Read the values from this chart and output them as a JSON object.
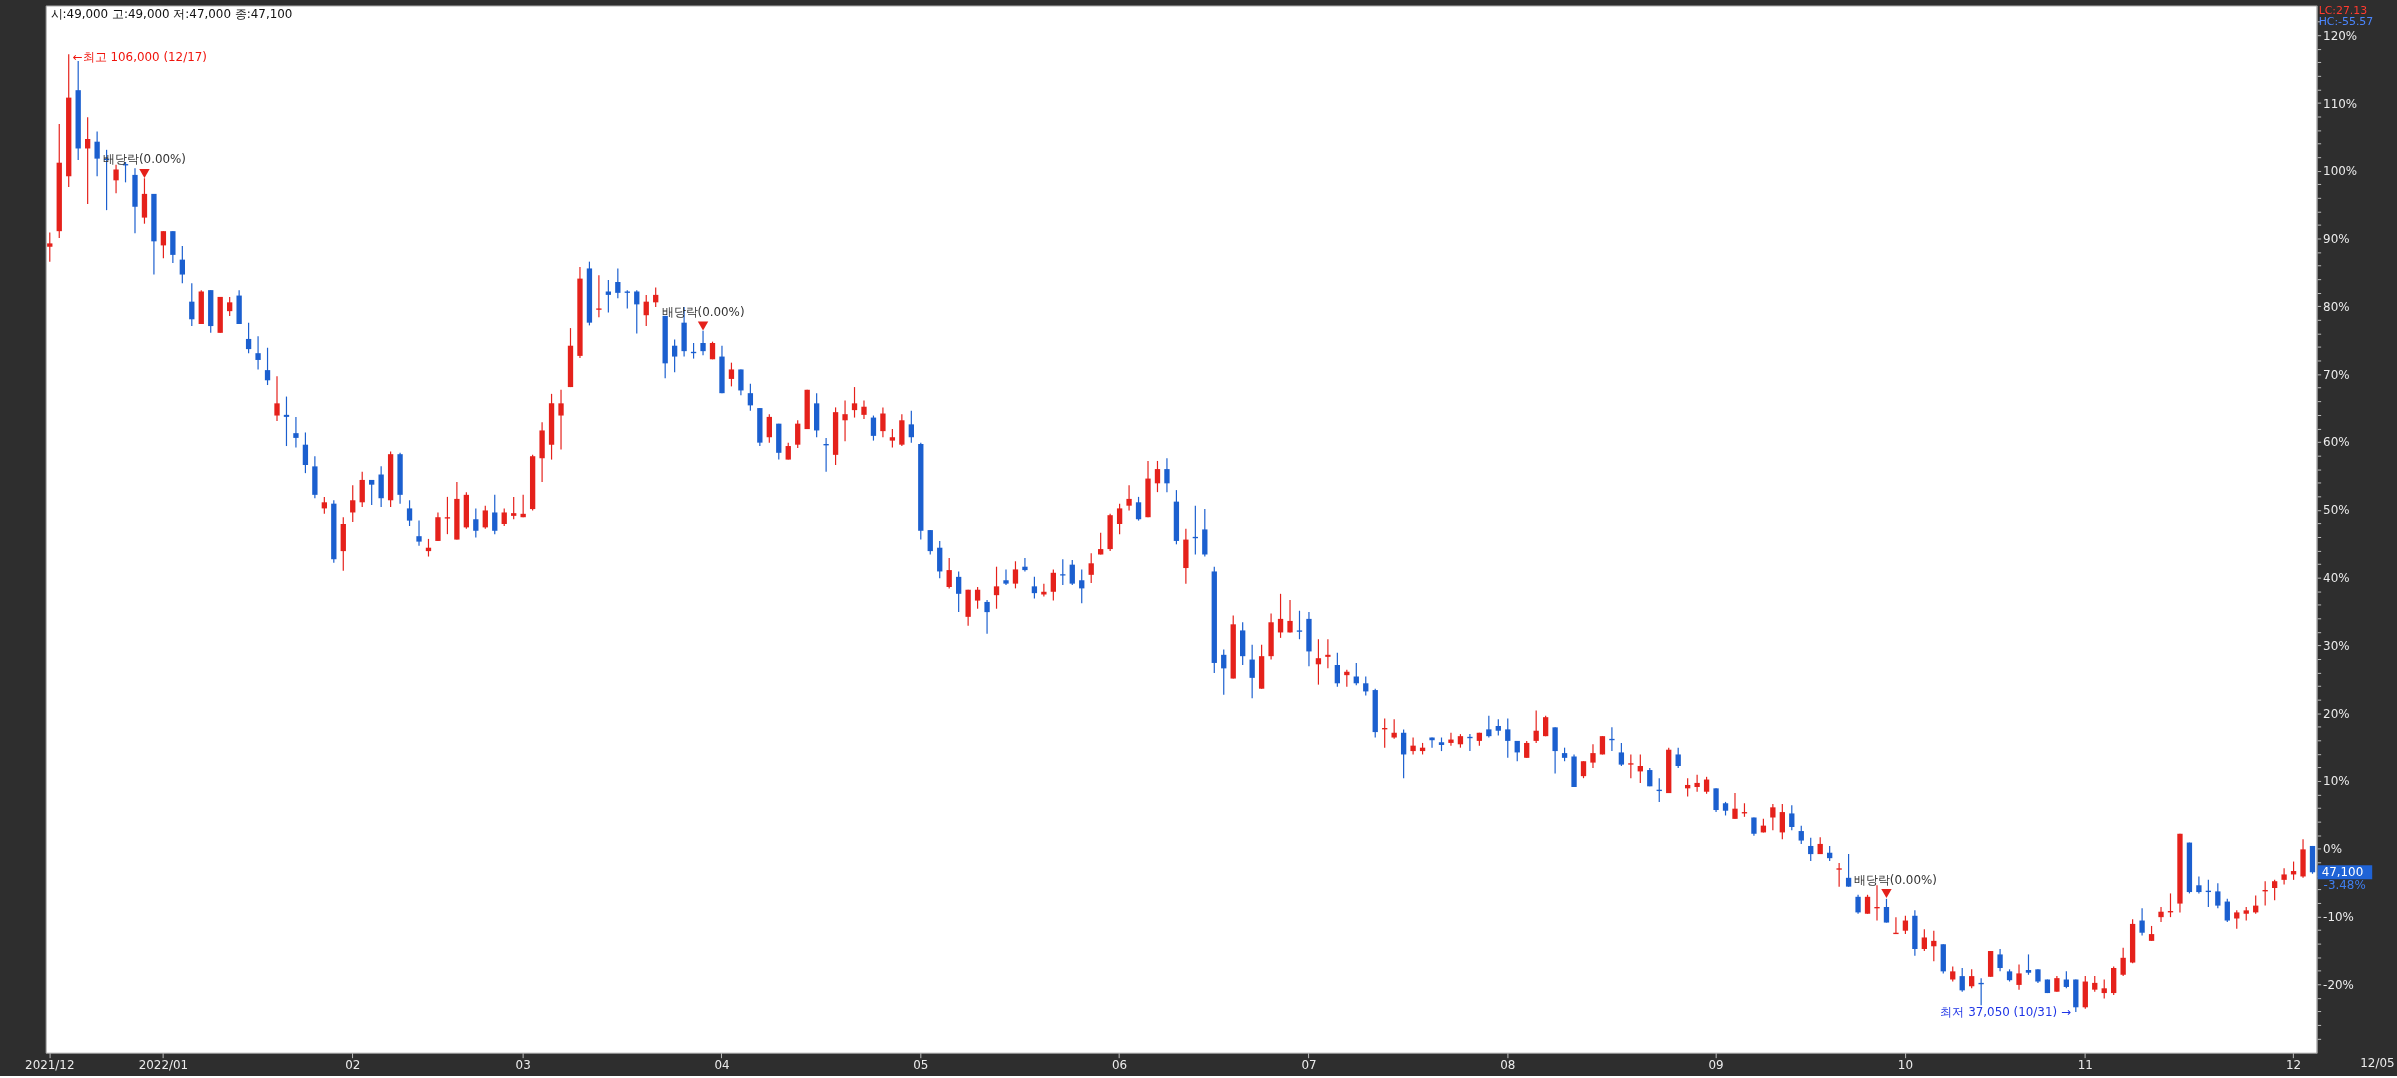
{
  "chart_data": {
    "type": "candlestick",
    "title": "시:49,000 고:49,000 저:47,000 종:47,100",
    "categories": [
      "2021/12",
      null,
      null,
      null,
      null,
      null,
      null,
      null,
      null,
      null,
      null,
      null,
      "2022/01",
      null,
      null,
      null,
      null,
      null,
      null,
      null,
      null,
      null,
      null,
      null,
      null,
      null,
      null,
      null,
      null,
      null,
      null,
      null,
      "02",
      null,
      null,
      null,
      null,
      null,
      null,
      null,
      null,
      null,
      null,
      null,
      null,
      null,
      null,
      null,
      null,
      null,
      "03",
      null,
      null,
      null,
      null,
      null,
      null,
      null,
      null,
      null,
      null,
      null,
      null,
      null,
      null,
      null,
      null,
      null,
      null,
      null,
      null,
      "04",
      null,
      null,
      null,
      null,
      null,
      null,
      null,
      null,
      null,
      null,
      null,
      null,
      null,
      null,
      null,
      null,
      null,
      null,
      null,
      null,
      "05",
      null,
      null,
      null,
      null,
      null,
      null,
      null,
      null,
      null,
      null,
      null,
      null,
      null,
      null,
      null,
      null,
      null,
      null,
      null,
      null,
      "06",
      null,
      null,
      null,
      null,
      null,
      null,
      null,
      null,
      null,
      null,
      null,
      null,
      null,
      null,
      null,
      null,
      null,
      null,
      null,
      "07",
      null,
      null,
      null,
      null,
      null,
      null,
      null,
      null,
      null,
      null,
      null,
      null,
      null,
      null,
      null,
      null,
      null,
      null,
      null,
      null,
      "08",
      null,
      null,
      null,
      null,
      null,
      null,
      null,
      null,
      null,
      null,
      null,
      null,
      null,
      null,
      null,
      null,
      null,
      null,
      null,
      null,
      null,
      "09",
      null,
      null,
      null,
      null,
      null,
      null,
      null,
      null,
      null,
      null,
      null,
      null,
      null,
      null,
      null,
      null,
      null,
      null,
      null,
      "10",
      null,
      null,
      null,
      null,
      null,
      null,
      null,
      null,
      null,
      null,
      null,
      null,
      null,
      null,
      null,
      null,
      null,
      null,
      "11",
      null,
      null,
      null,
      null,
      null,
      null,
      null,
      null,
      null,
      null,
      null,
      null,
      null,
      null,
      null,
      null,
      null,
      null,
      null,
      null,
      null,
      "12",
      null,
      null
    ],
    "ohlc": [
      [
        88.8,
        90.9,
        86.6,
        89.3
      ],
      [
        91.1,
        106.9,
        90.1,
        101.2
      ],
      [
        99.2,
        117.2,
        97.6,
        110.8
      ],
      [
        111.9,
        116.2,
        101.6,
        103.3
      ],
      [
        103.3,
        107.9,
        95.1,
        104.7
      ],
      [
        104.3,
        105.8,
        99.2,
        101.8
      ],
      [
        101.8,
        103.1,
        94.2,
        101.6
      ],
      [
        98.6,
        100.9,
        96.7,
        100.2
      ],
      [
        101.0,
        101.3,
        98.3,
        100.8
      ],
      [
        99.4,
        100.4,
        90.8,
        94.7
      ],
      [
        93.1,
        98.9,
        92.2,
        96.6
      ],
      [
        96.6,
        96.6,
        84.7,
        89.6
      ],
      [
        89.0,
        91.1,
        87.1,
        91.1
      ],
      [
        91.1,
        91.1,
        86.4,
        87.6
      ],
      [
        86.9,
        88.9,
        83.4,
        84.7
      ],
      [
        80.7,
        83.4,
        77.1,
        78.1
      ],
      [
        77.4,
        82.4,
        77.4,
        82.2
      ],
      [
        82.4,
        82.4,
        76.1,
        77.1
      ],
      [
        76.1,
        81.4,
        76.1,
        81.4
      ],
      [
        79.3,
        81.4,
        78.6,
        80.6
      ],
      [
        81.6,
        82.4,
        77.4,
        77.4
      ],
      [
        75.2,
        77.6,
        73.1,
        73.7
      ],
      [
        73.1,
        75.6,
        70.7,
        72.1
      ],
      [
        70.6,
        73.9,
        68.4,
        69.1
      ],
      [
        63.9,
        69.7,
        63.1,
        65.7
      ],
      [
        64.0,
        66.7,
        59.4,
        63.7
      ],
      [
        61.3,
        63.7,
        59.2,
        60.6
      ],
      [
        59.6,
        61.4,
        55.4,
        56.6
      ],
      [
        56.4,
        57.9,
        51.7,
        52.2
      ],
      [
        50.2,
        51.9,
        49.4,
        51.1
      ],
      [
        50.9,
        51.4,
        42.2,
        42.7
      ],
      [
        43.9,
        48.9,
        41.0,
        47.9
      ],
      [
        49.6,
        53.6,
        48.2,
        51.4
      ],
      [
        51.1,
        55.6,
        50.4,
        54.4
      ],
      [
        54.4,
        54.4,
        50.7,
        53.7
      ],
      [
        55.2,
        56.4,
        50.4,
        51.7
      ],
      [
        51.4,
        58.6,
        50.4,
        58.2
      ],
      [
        58.2,
        58.4,
        50.9,
        52.2
      ],
      [
        50.2,
        51.4,
        47.6,
        48.4
      ],
      [
        46.1,
        48.4,
        44.7,
        45.3
      ],
      [
        43.9,
        45.7,
        43.1,
        44.4
      ],
      [
        45.4,
        49.6,
        45.4,
        48.9
      ],
      [
        48.7,
        51.9,
        46.4,
        48.9
      ],
      [
        45.6,
        54.1,
        45.6,
        51.6
      ],
      [
        47.4,
        52.6,
        47.2,
        52.2
      ],
      [
        48.6,
        50.2,
        45.9,
        46.9
      ],
      [
        47.4,
        50.6,
        47.2,
        49.9
      ],
      [
        49.6,
        52.2,
        46.4,
        46.9
      ],
      [
        47.9,
        50.2,
        47.6,
        49.6
      ],
      [
        49.1,
        51.9,
        48.6,
        49.5
      ],
      [
        48.9,
        52.2,
        48.9,
        49.4
      ],
      [
        50.1,
        58.1,
        49.9,
        57.9
      ],
      [
        57.6,
        62.9,
        54.1,
        61.7
      ],
      [
        59.6,
        67.1,
        57.4,
        65.7
      ],
      [
        63.9,
        67.7,
        58.9,
        65.7
      ],
      [
        68.1,
        76.8,
        68.1,
        74.2
      ],
      [
        72.7,
        85.8,
        72.4,
        84.1
      ],
      [
        85.6,
        86.6,
        77.2,
        77.6
      ],
      [
        79.5,
        84.6,
        78.4,
        79.7
      ],
      [
        82.2,
        83.9,
        79.1,
        81.7
      ],
      [
        83.6,
        85.6,
        81.2,
        82.0
      ],
      [
        82.2,
        82.4,
        79.7,
        82.0
      ],
      [
        82.2,
        82.4,
        76.0,
        80.3
      ],
      [
        78.7,
        81.7,
        77.1,
        80.7
      ],
      [
        80.6,
        82.8,
        79.9,
        81.7
      ],
      [
        78.6,
        78.6,
        69.4,
        71.6
      ],
      [
        74.2,
        75.1,
        70.3,
        72.6
      ],
      [
        77.6,
        79.9,
        72.6,
        73.4
      ],
      [
        73.3,
        74.6,
        72.3,
        73.1
      ],
      [
        74.6,
        76.4,
        72.8,
        73.4
      ],
      [
        72.2,
        74.8,
        72.2,
        74.6
      ],
      [
        72.6,
        74.2,
        67.2,
        67.2
      ],
      [
        69.3,
        71.7,
        68.2,
        70.7
      ],
      [
        70.7,
        70.7,
        66.9,
        67.6
      ],
      [
        67.2,
        68.6,
        64.6,
        65.4
      ],
      [
        65.0,
        65.0,
        59.4,
        59.9
      ],
      [
        60.7,
        64.1,
        59.9,
        63.7
      ],
      [
        62.7,
        62.7,
        57.4,
        58.4
      ],
      [
        57.4,
        59.9,
        57.4,
        59.4
      ],
      [
        59.6,
        63.2,
        59.1,
        62.7
      ],
      [
        61.9,
        67.7,
        61.9,
        67.7
      ],
      [
        65.7,
        67.2,
        60.7,
        61.7
      ],
      [
        59.7,
        60.6,
        55.6,
        59.5
      ],
      [
        58.1,
        65.1,
        56.6,
        64.4
      ],
      [
        63.2,
        66.1,
        60.1,
        64.1
      ],
      [
        64.7,
        68.1,
        63.6,
        65.7
      ],
      [
        64.0,
        66.1,
        63.4,
        65.2
      ],
      [
        63.6,
        63.9,
        60.2,
        60.9
      ],
      [
        61.6,
        65.1,
        60.7,
        64.2
      ],
      [
        60.2,
        61.9,
        59.2,
        60.7
      ],
      [
        59.6,
        64.1,
        59.4,
        63.2
      ],
      [
        62.6,
        64.6,
        59.9,
        60.7
      ],
      [
        59.7,
        59.9,
        45.6,
        46.9
      ],
      [
        47.0,
        47.0,
        43.4,
        43.9
      ],
      [
        44.4,
        45.4,
        39.9,
        40.9
      ],
      [
        38.6,
        42.9,
        38.4,
        41.1
      ],
      [
        40.1,
        40.9,
        34.9,
        37.6
      ],
      [
        34.2,
        38.2,
        32.9,
        38.2
      ],
      [
        36.6,
        38.6,
        35.4,
        38.2
      ],
      [
        36.4,
        36.7,
        31.7,
        34.9
      ],
      [
        37.4,
        41.6,
        35.4,
        38.7
      ],
      [
        39.6,
        41.2,
        38.9,
        39.1
      ],
      [
        39.1,
        42.4,
        38.4,
        41.2
      ],
      [
        41.6,
        42.9,
        40.9,
        41.1
      ],
      [
        38.7,
        40.1,
        36.9,
        37.7
      ],
      [
        37.5,
        39.1,
        37.2,
        37.9
      ],
      [
        37.9,
        41.2,
        36.6,
        40.7
      ],
      [
        40.5,
        42.7,
        38.9,
        40.3
      ],
      [
        41.9,
        42.6,
        38.9,
        39.1
      ],
      [
        39.6,
        41.2,
        36.2,
        38.4
      ],
      [
        40.4,
        43.6,
        39.2,
        42.1
      ],
      [
        43.4,
        46.6,
        43.4,
        44.2
      ],
      [
        44.2,
        49.4,
        43.9,
        49.2
      ],
      [
        47.9,
        50.9,
        46.4,
        50.2
      ],
      [
        50.6,
        53.6,
        49.9,
        51.6
      ],
      [
        51.1,
        51.9,
        48.4,
        48.6
      ],
      [
        48.9,
        57.2,
        48.9,
        54.6
      ],
      [
        53.9,
        57.2,
        52.6,
        56.0
      ],
      [
        56.0,
        57.6,
        52.6,
        53.9
      ],
      [
        51.2,
        52.9,
        44.9,
        45.4
      ],
      [
        41.4,
        47.2,
        39.1,
        45.6
      ],
      [
        46.0,
        50.6,
        43.4,
        45.8
      ],
      [
        47.1,
        50.1,
        43.1,
        43.4
      ],
      [
        40.9,
        41.6,
        25.9,
        27.4
      ],
      [
        28.6,
        29.4,
        22.7,
        26.6
      ],
      [
        25.1,
        34.4,
        25.1,
        33.1
      ],
      [
        32.2,
        33.4,
        27.1,
        28.4
      ],
      [
        27.9,
        30.1,
        22.2,
        25.2
      ],
      [
        23.6,
        30.1,
        23.6,
        28.4
      ],
      [
        28.4,
        34.7,
        27.9,
        33.4
      ],
      [
        31.9,
        37.6,
        31.1,
        33.9
      ],
      [
        31.9,
        36.7,
        31.9,
        33.6
      ],
      [
        32.2,
        35.1,
        30.9,
        32.0
      ],
      [
        33.9,
        34.9,
        26.9,
        29.1
      ],
      [
        27.2,
        30.9,
        24.2,
        28.1
      ],
      [
        28.3,
        30.9,
        26.6,
        28.6
      ],
      [
        27.1,
        28.9,
        23.9,
        24.4
      ],
      [
        25.6,
        26.4,
        23.9,
        26.1
      ],
      [
        25.4,
        27.4,
        24.1,
        24.4
      ],
      [
        24.4,
        25.4,
        22.6,
        23.2
      ],
      [
        23.4,
        23.6,
        16.4,
        17.2
      ],
      [
        17.6,
        19.2,
        14.9,
        17.8
      ],
      [
        16.4,
        19.1,
        16.2,
        17.1
      ],
      [
        17.1,
        17.6,
        10.4,
        13.9
      ],
      [
        14.4,
        16.4,
        13.9,
        15.2
      ],
      [
        14.4,
        15.6,
        13.9,
        14.9
      ],
      [
        16.4,
        16.4,
        14.9,
        16.0
      ],
      [
        15.7,
        16.4,
        14.4,
        15.3
      ],
      [
        15.6,
        17.1,
        15.2,
        16.1
      ],
      [
        15.4,
        16.9,
        14.9,
        16.6
      ],
      [
        16.5,
        16.9,
        14.4,
        16.3
      ],
      [
        15.9,
        17.1,
        15.2,
        17.1
      ],
      [
        17.6,
        19.6,
        16.4,
        16.6
      ],
      [
        18.1,
        19.1,
        16.7,
        17.4
      ],
      [
        17.6,
        19.2,
        13.4,
        15.9
      ],
      [
        15.9,
        15.9,
        12.9,
        14.2
      ],
      [
        13.4,
        15.9,
        13.4,
        15.6
      ],
      [
        15.9,
        20.4,
        15.6,
        17.4
      ],
      [
        16.6,
        19.6,
        16.6,
        19.4
      ],
      [
        17.9,
        17.9,
        11.1,
        14.4
      ],
      [
        14.1,
        14.9,
        12.9,
        13.4
      ],
      [
        13.6,
        13.9,
        9.1,
        9.1
      ],
      [
        10.7,
        12.9,
        10.4,
        12.9
      ],
      [
        12.7,
        15.4,
        11.9,
        14.1
      ],
      [
        13.9,
        16.6,
        13.9,
        16.6
      ],
      [
        16.2,
        17.9,
        14.4,
        16.0
      ],
      [
        14.2,
        15.6,
        12.2,
        12.4
      ],
      [
        12.4,
        13.9,
        10.4,
        12.6
      ],
      [
        11.4,
        13.9,
        9.7,
        12.2
      ],
      [
        11.6,
        11.9,
        9.2,
        9.2
      ],
      [
        8.7,
        10.4,
        6.9,
        8.5
      ],
      [
        8.2,
        14.9,
        8.2,
        14.6
      ],
      [
        13.9,
        14.9,
        11.9,
        12.2
      ],
      [
        8.9,
        10.4,
        7.7,
        9.4
      ],
      [
        9.1,
        10.9,
        8.4,
        9.7
      ],
      [
        8.4,
        10.6,
        8.1,
        10.2
      ],
      [
        8.9,
        8.9,
        5.4,
        5.7
      ],
      [
        6.7,
        6.9,
        4.9,
        5.6
      ],
      [
        4.4,
        8.2,
        4.4,
        5.9
      ],
      [
        5.2,
        6.7,
        4.7,
        5.4
      ],
      [
        4.6,
        4.6,
        1.9,
        2.2
      ],
      [
        2.4,
        4.4,
        2.4,
        3.4
      ],
      [
        4.6,
        6.6,
        2.7,
        6.1
      ],
      [
        2.4,
        6.6,
        1.4,
        5.4
      ],
      [
        5.2,
        6.4,
        2.7,
        3.2
      ],
      [
        2.6,
        3.4,
        0.7,
        1.2
      ],
      [
        0.4,
        1.6,
        -1.8,
        -0.8
      ],
      [
        -0.8,
        1.7,
        -0.8,
        0.7
      ],
      [
        -0.6,
        0.4,
        -1.8,
        -1.4
      ],
      [
        -3.1,
        -2.1,
        -5.6,
        -2.9
      ],
      [
        -4.3,
        -0.8,
        -5.6,
        -5.6
      ],
      [
        -7.1,
        -6.8,
        -9.6,
        -9.4
      ],
      [
        -9.6,
        -6.8,
        -9.6,
        -7.1
      ],
      [
        -8.8,
        -5.4,
        -10.6,
        -8.6
      ],
      [
        -8.6,
        -7.4,
        -10.9,
        -10.9
      ],
      [
        -12.6,
        -10.1,
        -12.6,
        -12.4
      ],
      [
        -12.1,
        -9.9,
        -12.6,
        -10.6
      ],
      [
        -9.9,
        -9.1,
        -15.8,
        -14.8
      ],
      [
        -14.8,
        -11.9,
        -15.1,
        -13.1
      ],
      [
        -14.4,
        -12.1,
        -16.6,
        -13.6
      ],
      [
        -14.1,
        -14.1,
        -18.4,
        -18.1
      ],
      [
        -19.3,
        -17.4,
        -19.6,
        -18.1
      ],
      [
        -18.8,
        -17.6,
        -21.1,
        -20.9
      ],
      [
        -20.3,
        -17.8,
        -20.6,
        -18.8
      ],
      [
        -19.8,
        -19.1,
        -23.1,
        -20.0
      ],
      [
        -18.9,
        -15.1,
        -18.9,
        -15.1
      ],
      [
        -15.6,
        -14.8,
        -18.1,
        -17.6
      ],
      [
        -18.1,
        -17.8,
        -19.6,
        -19.4
      ],
      [
        -20.1,
        -17.1,
        -20.8,
        -18.4
      ],
      [
        -17.9,
        -15.6,
        -18.6,
        -18.3
      ],
      [
        -17.8,
        -17.8,
        -19.8,
        -19.6
      ],
      [
        -19.3,
        -19.3,
        -21.3,
        -21.3
      ],
      [
        -21.1,
        -18.8,
        -21.1,
        -19.1
      ],
      [
        -19.3,
        -18.1,
        -20.6,
        -20.4
      ],
      [
        -19.3,
        -19.3,
        -24.1,
        -23.4
      ],
      [
        -23.4,
        -18.8,
        -23.6,
        -19.6
      ],
      [
        -20.8,
        -18.8,
        -21.1,
        -19.8
      ],
      [
        -21.3,
        -19.3,
        -22.1,
        -20.6
      ],
      [
        -21.3,
        -17.4,
        -21.6,
        -17.6
      ],
      [
        -18.6,
        -14.6,
        -18.8,
        -16.1
      ],
      [
        -16.8,
        -10.4,
        -16.9,
        -11.1
      ],
      [
        -10.6,
        -8.8,
        -12.8,
        -12.4
      ],
      [
        -13.6,
        -11.4,
        -13.6,
        -12.6
      ],
      [
        -10.1,
        -8.6,
        -10.8,
        -9.3
      ],
      [
        -9.4,
        -6.6,
        -10.1,
        -9.2
      ],
      [
        -8.1,
        2.2,
        -9.4,
        2.2
      ],
      [
        0.9,
        0.9,
        -6.6,
        -6.4
      ],
      [
        -5.4,
        -4.1,
        -6.6,
        -6.4
      ],
      [
        -6.2,
        -4.6,
        -8.6,
        -6.4
      ],
      [
        -6.3,
        -5.1,
        -8.8,
        -8.4
      ],
      [
        -7.8,
        -7.4,
        -10.8,
        -10.6
      ],
      [
        -10.3,
        -9.1,
        -11.8,
        -9.4
      ],
      [
        -9.6,
        -8.6,
        -10.6,
        -9.1
      ],
      [
        -9.4,
        -6.9,
        -9.6,
        -8.4
      ],
      [
        -6.3,
        -4.8,
        -8.4,
        -6.1
      ],
      [
        -5.8,
        -4.6,
        -7.6,
        -4.8
      ],
      [
        -4.6,
        -2.9,
        -5.3,
        -3.8
      ],
      [
        -3.8,
        -1.9,
        -4.6,
        -3.3
      ],
      [
        -4.1,
        1.4,
        -4.3,
        -0.1
      ],
      [
        0.4,
        0.4,
        -3.7,
        -3.48
      ]
    ],
    "colors": [
      "#e5211b",
      "#e5211b",
      "#e5211b",
      "#1b5fcf",
      "#e5211b",
      "#1b5fcf",
      "#1b5fcf",
      "#e5211b",
      "#1b5fcf",
      "#1b5fcf",
      "#e5211b",
      "#1b5fcf",
      "#e5211b",
      "#1b5fcf",
      "#1b5fcf",
      "#1b5fcf",
      "#e5211b",
      "#1b5fcf",
      "#e5211b",
      "#e5211b",
      "#1b5fcf",
      "#1b5fcf",
      "#1b5fcf",
      "#1b5fcf",
      "#e5211b",
      "#1b5fcf",
      "#1b5fcf",
      "#1b5fcf",
      "#1b5fcf",
      "#e5211b",
      "#1b5fcf",
      "#e5211b",
      "#e5211b",
      "#e5211b",
      "#1b5fcf",
      "#1b5fcf",
      "#e5211b",
      "#1b5fcf",
      "#1b5fcf",
      "#1b5fcf",
      "#e5211b",
      "#e5211b",
      "#e5211b",
      "#e5211b",
      "#e5211b",
      "#1b5fcf",
      "#e5211b",
      "#1b5fcf",
      "#e5211b",
      "#e5211b",
      "#e5211b",
      "#e5211b",
      "#e5211b",
      "#e5211b",
      "#e5211b",
      "#e5211b",
      "#e5211b",
      "#1b5fcf",
      "#e5211b",
      "#1b5fcf",
      "#1b5fcf",
      "#1b5fcf",
      "#1b5fcf",
      "#e5211b",
      "#e5211b",
      "#1b5fcf",
      "#1b5fcf",
      "#1b5fcf",
      "#1b5fcf",
      "#1b5fcf",
      "#e5211b",
      "#1b5fcf",
      "#e5211b",
      "#1b5fcf",
      "#1b5fcf",
      "#1b5fcf",
      "#e5211b",
      "#1b5fcf",
      "#e5211b",
      "#e5211b",
      "#e5211b",
      "#1b5fcf",
      "#1b5fcf",
      "#e5211b",
      "#e5211b",
      "#e5211b",
      "#e5211b",
      "#1b5fcf",
      "#e5211b",
      "#e5211b",
      "#e5211b",
      "#1b5fcf",
      "#1b5fcf",
      "#1b5fcf",
      "#1b5fcf",
      "#e5211b",
      "#1b5fcf",
      "#e5211b",
      "#e5211b",
      "#1b5fcf",
      "#e5211b",
      "#1b5fcf",
      "#e5211b",
      "#1b5fcf",
      "#1b5fcf",
      "#e5211b",
      "#e5211b",
      "#1b5fcf",
      "#1b5fcf",
      "#1b5fcf",
      "#e5211b",
      "#e5211b",
      "#e5211b",
      "#e5211b",
      "#e5211b",
      "#1b5fcf",
      "#e5211b",
      "#e5211b",
      "#1b5fcf",
      "#1b5fcf",
      "#e5211b",
      "#1b5fcf",
      "#1b5fcf",
      "#1b5fcf",
      "#1b5fcf",
      "#e5211b",
      "#1b5fcf",
      "#1b5fcf",
      "#e5211b",
      "#e5211b",
      "#e5211b",
      "#e5211b",
      "#1b5fcf",
      "#1b5fcf",
      "#e5211b",
      "#e5211b",
      "#1b5fcf",
      "#e5211b",
      "#1b5fcf",
      "#1b5fcf",
      "#1b5fcf",
      "#e5211b",
      "#e5211b",
      "#1b5fcf",
      "#e5211b",
      "#e5211b",
      "#1b5fcf",
      "#1b5fcf",
      "#e5211b",
      "#e5211b",
      "#1b5fcf",
      "#e5211b",
      "#1b5fcf",
      "#1b5fcf",
      "#1b5fcf",
      "#1b5fcf",
      "#e5211b",
      "#e5211b",
      "#e5211b",
      "#1b5fcf",
      "#1b5fcf",
      "#1b5fcf",
      "#e5211b",
      "#e5211b",
      "#e5211b",
      "#1b5fcf",
      "#1b5fcf",
      "#e5211b",
      "#e5211b",
      "#1b5fcf",
      "#1b5fcf",
      "#e5211b",
      "#1b5fcf",
      "#e5211b",
      "#e5211b",
      "#e5211b",
      "#1b5fcf",
      "#1b5fcf",
      "#e5211b",
      "#e5211b",
      "#1b5fcf",
      "#e5211b",
      "#e5211b",
      "#e5211b",
      "#1b5fcf",
      "#1b5fcf",
      "#1b5fcf",
      "#e5211b",
      "#1b5fcf",
      "#e5211b",
      "#1b5fcf",
      "#1b5fcf",
      "#e5211b",
      "#e5211b",
      "#1b5fcf",
      "#e5211b",
      "#e5211b",
      "#1b5fcf",
      "#e5211b",
      "#e5211b",
      "#1b5fcf",
      "#e5211b",
      "#1b5fcf",
      "#e5211b",
      "#1b5fcf",
      "#e5211b",
      "#1b5fcf",
      "#1b5fcf",
      "#e5211b",
      "#1b5fcf",
      "#1b5fcf",
      "#1b5fcf",
      "#e5211b",
      "#1b5fcf",
      "#1b5fcf",
      "#e5211b",
      "#e5211b",
      "#e5211b",
      "#e5211b",
      "#e5211b",
      "#e5211b",
      "#1b5fcf",
      "#e5211b",
      "#e5211b",
      "#e5211b",
      "#e5211b",
      "#1b5fcf",
      "#1b5fcf",
      "#1b5fcf",
      "#1b5fcf",
      "#1b5fcf",
      "#e5211b",
      "#e5211b",
      "#e5211b",
      "#e5211b",
      "#e5211b",
      "#e5211b",
      "#e5211b",
      "#e5211b",
      "#1b5fcf"
    ],
    "series": [
      {
        "type": "scatter",
        "color": "#e5211b",
        "marker": "triangle",
        "values": [
          null,
          null,
          null,
          null,
          null,
          null,
          null,
          null,
          null,
          null,
          99.6,
          null,
          null,
          null,
          null,
          null,
          null,
          null,
          null,
          null,
          null,
          null,
          null,
          null,
          null,
          null,
          null,
          null,
          null,
          null,
          null,
          null,
          null,
          null,
          null,
          null,
          null,
          null,
          null,
          null,
          null,
          null,
          null,
          null,
          null,
          null,
          null,
          null,
          null,
          null,
          null,
          null,
          null,
          null,
          null,
          null,
          null,
          null,
          null,
          null,
          null,
          null,
          null,
          null,
          null,
          null,
          null,
          null,
          null,
          77.1,
          null,
          null,
          null,
          null,
          null,
          null,
          null,
          null,
          null,
          null,
          null,
          null,
          null,
          null,
          null,
          null,
          null,
          null,
          null,
          null,
          null,
          null,
          null,
          null,
          null,
          null,
          null,
          null,
          null,
          null,
          null,
          null,
          null,
          null,
          null,
          null,
          null,
          null,
          null,
          null,
          null,
          null,
          null,
          null,
          null,
          null,
          null,
          null,
          null,
          null,
          null,
          null,
          null,
          null,
          null,
          null,
          null,
          null,
          null,
          null,
          null,
          null,
          null,
          null,
          null,
          null,
          null,
          null,
          null,
          null,
          null,
          null,
          null,
          null,
          null,
          null,
          null,
          null,
          null,
          null,
          null,
          null,
          null,
          null,
          null,
          null,
          null,
          null,
          null,
          null,
          null,
          null,
          null,
          null,
          null,
          null,
          null,
          null,
          null,
          null,
          null,
          null,
          null,
          null,
          null,
          null,
          null,
          null,
          null,
          null,
          null,
          null,
          null,
          null,
          null,
          null,
          null,
          null,
          null,
          null,
          null,
          null,
          null,
          null,
          -6.6,
          null,
          null,
          null,
          null,
          null,
          null,
          null,
          null,
          null,
          null,
          null,
          null,
          null,
          null,
          null,
          null,
          null,
          null,
          null,
          null,
          null,
          null,
          null,
          null,
          null,
          null,
          null,
          null,
          null,
          null,
          null,
          null,
          null,
          null,
          null,
          null,
          null,
          null,
          null,
          null,
          null,
          null,
          null,
          null,
          null
        ]
      }
    ],
    "ylim": [
      -30.1,
      124.4
    ],
    "yticks": [
      {
        "value": -28,
        "label": null
      },
      {
        "value": -26,
        "label": null
      },
      {
        "value": -24,
        "label": null
      },
      {
        "value": -22,
        "label": null
      },
      {
        "value": -20,
        "label": "-20%"
      },
      {
        "value": -18,
        "label": null
      },
      {
        "value": -16,
        "label": null
      },
      {
        "value": -14,
        "label": null
      },
      {
        "value": -12,
        "label": null
      },
      {
        "value": -10,
        "label": "-10%"
      },
      {
        "value": -8,
        "label": null
      },
      {
        "value": -6,
        "label": null
      },
      {
        "value": -4,
        "label": null
      },
      {
        "value": -2,
        "label": null
      },
      {
        "value": 0,
        "label": "0%"
      },
      {
        "value": 2,
        "label": null
      },
      {
        "value": 4,
        "label": null
      },
      {
        "value": 6,
        "label": null
      },
      {
        "value": 8,
        "label": null
      },
      {
        "value": 10,
        "label": "10%"
      },
      {
        "value": 12,
        "label": null
      },
      {
        "value": 14,
        "label": null
      },
      {
        "value": 16,
        "label": null
      },
      {
        "value": 18,
        "label": null
      },
      {
        "value": 20,
        "label": "20%"
      },
      {
        "value": 22,
        "label": null
      },
      {
        "value": 24,
        "label": null
      },
      {
        "value": 26,
        "label": null
      },
      {
        "value": 28,
        "label": null
      },
      {
        "value": 30,
        "label": "30%"
      },
      {
        "value": 32,
        "label": null
      },
      {
        "value": 34,
        "label": null
      },
      {
        "value": 36,
        "label": null
      },
      {
        "value": 38,
        "label": null
      },
      {
        "value": 40,
        "label": "40%"
      },
      {
        "value": 42,
        "label": null
      },
      {
        "value": 44,
        "label": null
      },
      {
        "value": 46,
        "label": null
      },
      {
        "value": 48,
        "label": null
      },
      {
        "value": 50,
        "label": "50%"
      },
      {
        "value": 52,
        "label": null
      },
      {
        "value": 54,
        "label": null
      },
      {
        "value": 56,
        "label": null
      },
      {
        "value": 58,
        "label": null
      },
      {
        "value": 60,
        "label": "60%"
      },
      {
        "value": 62,
        "label": null
      },
      {
        "value": 64,
        "label": null
      },
      {
        "value": 66,
        "label": null
      },
      {
        "value": 68,
        "label": null
      },
      {
        "value": 70,
        "label": "70%"
      },
      {
        "value": 72,
        "label": null
      },
      {
        "value": 74,
        "label": null
      },
      {
        "value": 76,
        "label": null
      },
      {
        "value": 78,
        "label": null
      },
      {
        "value": 80,
        "label": "80%"
      },
      {
        "value": 82,
        "label": null
      },
      {
        "value": 84,
        "label": null
      },
      {
        "value": 86,
        "label": null
      },
      {
        "value": 88,
        "label": null
      },
      {
        "value": 90,
        "label": "90%"
      },
      {
        "value": 92,
        "label": null
      },
      {
        "value": 94,
        "label": null
      },
      {
        "value": 96,
        "label": null
      },
      {
        "value": 98,
        "label": null
      },
      {
        "value": 100,
        "label": "100%"
      },
      {
        "value": 102,
        "label": null
      },
      {
        "value": 104,
        "label": null
      },
      {
        "value": 106,
        "label": null
      },
      {
        "value": 108,
        "label": null
      },
      {
        "value": 110,
        "label": "110%"
      },
      {
        "value": 112,
        "label": null
      },
      {
        "value": 114,
        "label": null
      },
      {
        "value": 116,
        "label": null
      },
      {
        "value": 118,
        "label": null
      },
      {
        "value": 120,
        "label": "120%"
      },
      {
        "value": 122,
        "label": null
      }
    ],
    "annotations": [
      "←최고 106,000 (12/17)",
      "최저 37,050 (10/31) →",
      "배당락(0.00%)",
      "배당락(0.00%)",
      "배당락(0.00%)",
      "47,100",
      "-3.48%",
      "LC:27.13",
      "HC:-55.57",
      "12/05"
    ]
  }
}
